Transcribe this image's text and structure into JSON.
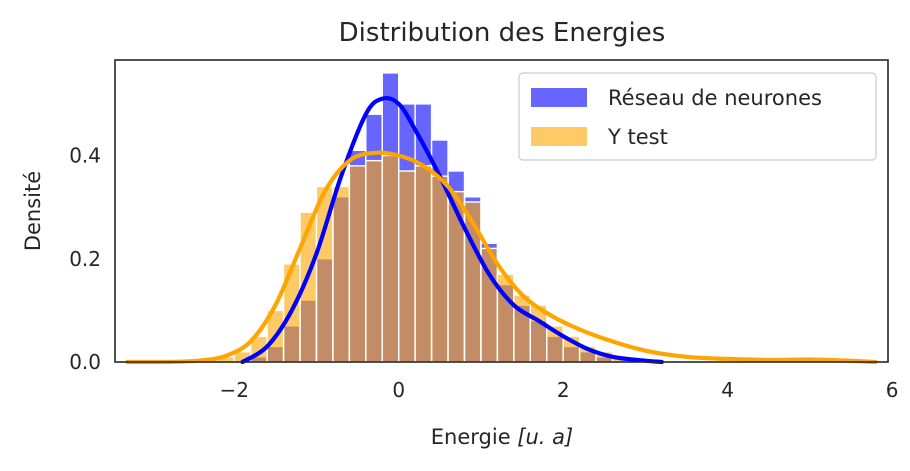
{
  "chart_data": {
    "type": "histogram",
    "title": "Distribution des Energies",
    "xlabel": "Energie [u. a]",
    "xlabel_text": "Energie ",
    "xlabel_math": "[u. a]",
    "ylabel": "Densité",
    "xlim": [
      -3.45,
      5.95
    ],
    "ylim": [
      0,
      0.585
    ],
    "xticks": [
      -2,
      0,
      2,
      4,
      6
    ],
    "xtick_labels": [
      "−2",
      "0",
      "2",
      "4",
      "6"
    ],
    "yticks": [
      0.0,
      0.2,
      0.4
    ],
    "ytick_labels": [
      "0.0",
      "0.2",
      "0.4"
    ],
    "grid": false,
    "legend_position": "top-right",
    "bin_width": 0.2,
    "series": [
      {
        "name": "Réseau de neurones",
        "color": "#0000ff",
        "alpha": 0.6,
        "bins": [
          {
            "x0": -1.8,
            "value": 0.01
          },
          {
            "x0": -1.6,
            "value": 0.03
          },
          {
            "x0": -1.4,
            "value": 0.07
          },
          {
            "x0": -1.2,
            "value": 0.12
          },
          {
            "x0": -1.0,
            "value": 0.2
          },
          {
            "x0": -0.8,
            "value": 0.32
          },
          {
            "x0": -0.6,
            "value": 0.41
          },
          {
            "x0": -0.4,
            "value": 0.48
          },
          {
            "x0": -0.2,
            "value": 0.56
          },
          {
            "x0": 0.0,
            "value": 0.5
          },
          {
            "x0": 0.2,
            "value": 0.5
          },
          {
            "x0": 0.4,
            "value": 0.43
          },
          {
            "x0": 0.6,
            "value": 0.37
          },
          {
            "x0": 0.8,
            "value": 0.32
          },
          {
            "x0": 1.0,
            "value": 0.23
          },
          {
            "x0": 1.2,
            "value": 0.15
          },
          {
            "x0": 1.4,
            "value": 0.11
          },
          {
            "x0": 1.6,
            "value": 0.08
          },
          {
            "x0": 1.8,
            "value": 0.05
          },
          {
            "x0": 2.0,
            "value": 0.03
          },
          {
            "x0": 2.2,
            "value": 0.02
          },
          {
            "x0": 2.4,
            "value": 0.01
          }
        ],
        "kde": {
          "x": [
            -1.9,
            -1.6,
            -1.3,
            -1.0,
            -0.7,
            -0.4,
            -0.2,
            0.0,
            0.2,
            0.5,
            0.8,
            1.1,
            1.4,
            1.7,
            2.0,
            2.3,
            2.6,
            2.9,
            3.2
          ],
          "y": [
            0.0,
            0.03,
            0.1,
            0.21,
            0.36,
            0.48,
            0.51,
            0.5,
            0.45,
            0.36,
            0.26,
            0.17,
            0.11,
            0.08,
            0.05,
            0.025,
            0.01,
            0.004,
            0.0
          ]
        }
      },
      {
        "name": "Y test",
        "color": "#ffa500",
        "alpha": 0.6,
        "bins": [
          {
            "x0": -3.2,
            "value": 0.005
          },
          {
            "x0": -2.4,
            "value": 0.005
          },
          {
            "x0": -2.2,
            "value": 0.01
          },
          {
            "x0": -2.0,
            "value": 0.02
          },
          {
            "x0": -1.8,
            "value": 0.05
          },
          {
            "x0": -1.6,
            "value": 0.1
          },
          {
            "x0": -1.4,
            "value": 0.19
          },
          {
            "x0": -1.2,
            "value": 0.29
          },
          {
            "x0": -1.0,
            "value": 0.34
          },
          {
            "x0": -0.8,
            "value": 0.34
          },
          {
            "x0": -0.6,
            "value": 0.38
          },
          {
            "x0": -0.4,
            "value": 0.39
          },
          {
            "x0": -0.2,
            "value": 0.4
          },
          {
            "x0": 0.0,
            "value": 0.37
          },
          {
            "x0": 0.2,
            "value": 0.38
          },
          {
            "x0": 0.4,
            "value": 0.36
          },
          {
            "x0": 0.6,
            "value": 0.33
          },
          {
            "x0": 0.8,
            "value": 0.31
          },
          {
            "x0": 1.0,
            "value": 0.22
          },
          {
            "x0": 1.2,
            "value": 0.17
          },
          {
            "x0": 1.4,
            "value": 0.13
          },
          {
            "x0": 1.6,
            "value": 0.11
          },
          {
            "x0": 1.8,
            "value": 0.07
          },
          {
            "x0": 2.0,
            "value": 0.05
          },
          {
            "x0": 2.2,
            "value": 0.03
          },
          {
            "x0": 2.4,
            "value": 0.02
          },
          {
            "x0": 2.6,
            "value": 0.01
          }
        ],
        "kde": {
          "x": [
            -3.3,
            -2.8,
            -2.4,
            -2.1,
            -1.8,
            -1.5,
            -1.2,
            -0.9,
            -0.6,
            -0.3,
            0.0,
            0.3,
            0.6,
            0.9,
            1.2,
            1.5,
            1.8,
            2.1,
            2.5,
            3.0,
            3.5,
            4.0,
            4.5,
            5.0,
            5.4,
            5.8
          ],
          "y": [
            0.0,
            0.0,
            0.003,
            0.012,
            0.04,
            0.11,
            0.22,
            0.33,
            0.39,
            0.405,
            0.4,
            0.38,
            0.34,
            0.27,
            0.19,
            0.13,
            0.095,
            0.07,
            0.045,
            0.022,
            0.01,
            0.006,
            0.004,
            0.005,
            0.003,
            0.0
          ]
        }
      }
    ]
  }
}
